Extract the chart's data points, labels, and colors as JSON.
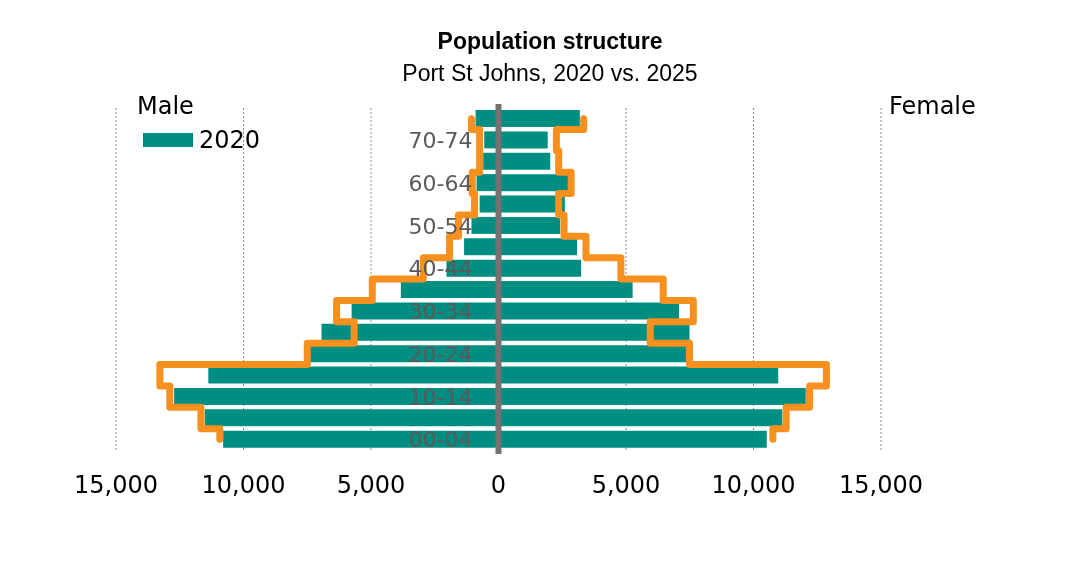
{
  "chart_data": {
    "type": "bar",
    "orientation": "horizontal",
    "stacked": true,
    "title": "Population structure",
    "subtitle": "Port St Johns, 2020 vs. 2025",
    "annotations": [
      "Male",
      "Female"
    ],
    "categories": [
      null,
      "70-74",
      null,
      "60-64",
      null,
      "50-54",
      null,
      "40-44",
      null,
      "30-34",
      null,
      "20-24",
      null,
      "10-14",
      null,
      "00-04"
    ],
    "series": [
      {
        "name": "2020",
        "color": "#008e83",
        "values": [
          -900,
          -560,
          -600,
          -860,
          -740,
          -1060,
          -1350,
          -2040,
          -3830,
          -5760,
          -6940,
          -7410,
          -11380,
          -12720,
          -11520,
          -10800
        ]
      },
      {
        "color": "#008e83",
        "values": [
          3190,
          1930,
          2030,
          2730,
          2600,
          2420,
          3080,
          3240,
          5260,
          7080,
          7490,
          7350,
          10970,
          12050,
          11130,
          10520
        ]
      },
      {
        "type": "step",
        "color": "#f7901e",
        "values": [
          -1060,
          -740,
          -740,
          -1030,
          -940,
          -1570,
          -1920,
          -2950,
          -4950,
          -6350,
          -5660,
          -7500,
          -13280,
          -12890,
          -11670,
          -10930
        ]
      },
      {
        "type": "step",
        "color": "#f7901e",
        "values": [
          3340,
          2270,
          2360,
          2850,
          2360,
          2570,
          3430,
          4800,
          6460,
          7640,
          5950,
          7490,
          12860,
          12200,
          11280,
          10760
        ]
      }
    ],
    "xlim": [
      -15000,
      15000
    ],
    "xticks": [
      {
        "value": -15000,
        "label": "15,000"
      },
      {
        "value": -10000,
        "label": "10,000"
      },
      {
        "value": -5000,
        "label": "5,000"
      },
      0,
      {
        "value": 5000,
        "label": "5,000"
      },
      {
        "value": 10000,
        "label": "10,000"
      },
      {
        "value": 15000,
        "label": "15,000"
      }
    ],
    "grid": "x",
    "legend": "top left"
  }
}
